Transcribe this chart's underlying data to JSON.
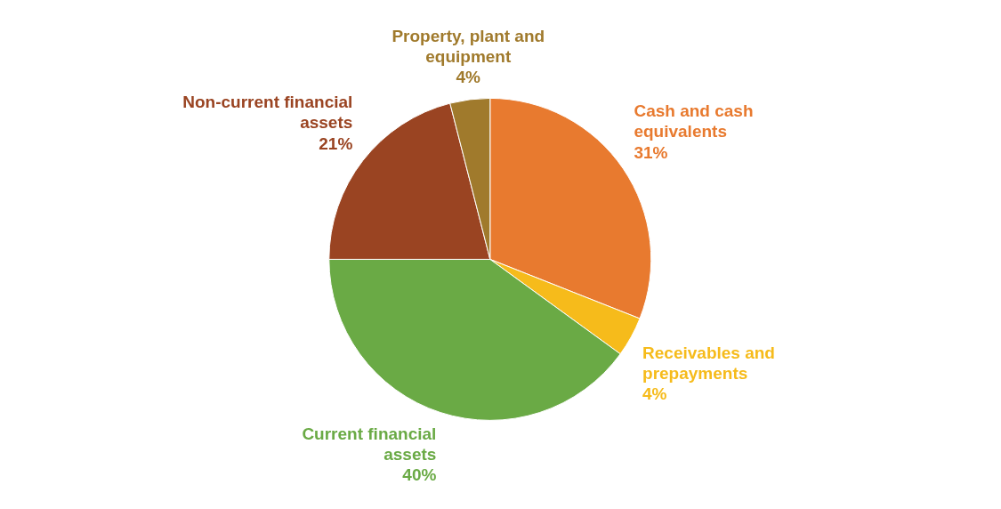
{
  "chart_data": {
    "type": "pie",
    "categories": [
      "Cash and cash equivalents",
      "Receivables and prepayments",
      "Current financial assets",
      "Non-current financial assets",
      "Property, plant and equipment"
    ],
    "values": [
      31,
      4,
      40,
      21,
      4
    ],
    "value_labels": [
      "31%",
      "4%",
      "40%",
      "21%",
      "4%"
    ],
    "colors": [
      "#e87a2f",
      "#f6bb1b",
      "#6aaa45",
      "#9a4422",
      "#a07a2c"
    ]
  }
}
